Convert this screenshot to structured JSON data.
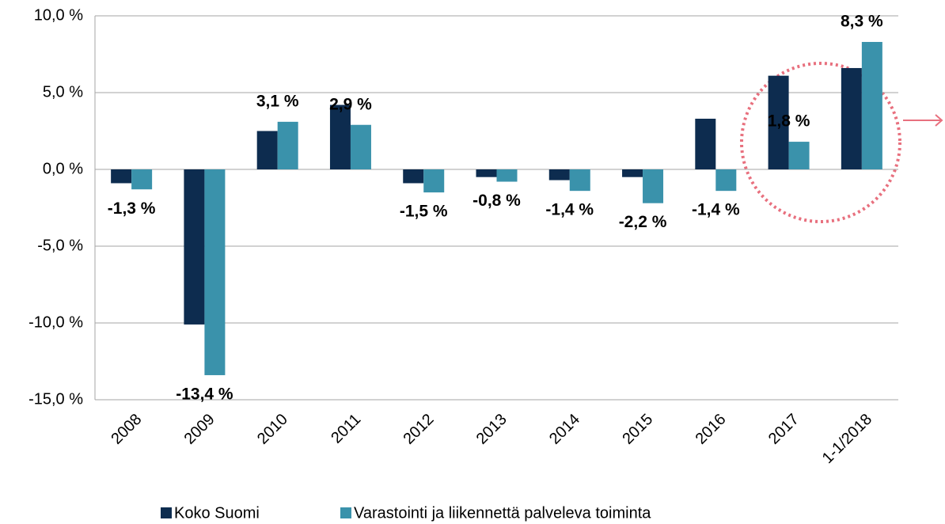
{
  "chart_data": {
    "type": "bar",
    "categories": [
      "2008",
      "2009",
      "2010",
      "2011",
      "2012",
      "2013",
      "2014",
      "2015",
      "2016",
      "2017",
      "1-1/2018"
    ],
    "series": [
      {
        "name": "Koko Suomi",
        "color": "#0d2c4f",
        "values": [
          -0.9,
          -10.1,
          2.5,
          4.2,
          -0.9,
          -0.5,
          -0.7,
          -0.5,
          3.3,
          6.1,
          6.6
        ]
      },
      {
        "name": "Varastointi ja liikennettä palveleva toiminta",
        "color": "#3a92ab",
        "values": [
          -1.3,
          -13.4,
          3.1,
          2.9,
          -1.5,
          -0.8,
          -1.4,
          -2.2,
          -1.4,
          1.8,
          8.3
        ],
        "value_labels": [
          "-1,3 %",
          "-13,4 %",
          "3,1 %",
          "2,9 %",
          "-1,5 %",
          "-0,8 %",
          "-1,4 %",
          "-2,2 %",
          "-1,4 %",
          "1,8 %",
          "8,3 %"
        ]
      }
    ],
    "ylim": [
      -15,
      10
    ],
    "yticks": [
      {
        "value": -15,
        "label": "-15,0 %"
      },
      {
        "value": -10,
        "label": "-10,0 %"
      },
      {
        "value": -5,
        "label": "-5,0 %"
      },
      {
        "value": 0,
        "label": "0,0 %"
      },
      {
        "value": 5,
        "label": "5,0 %"
      },
      {
        "value": 10,
        "label": "10,0 %"
      }
    ],
    "grid": true
  }
}
